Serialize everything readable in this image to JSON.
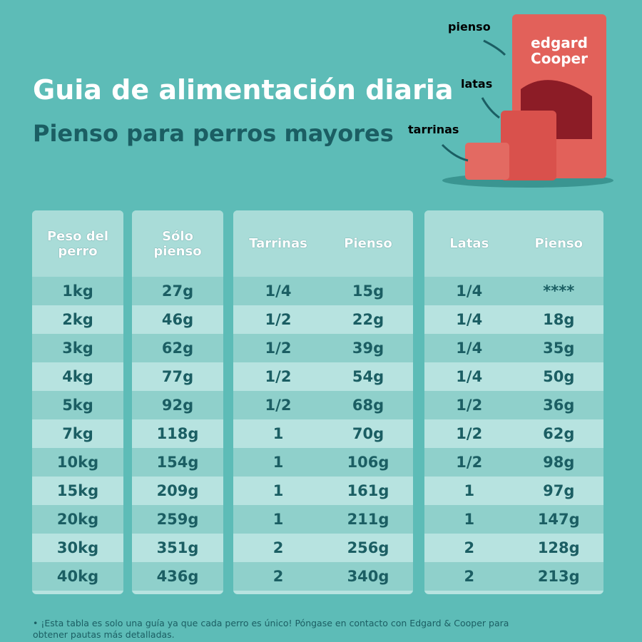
{
  "header": {
    "title": "Guia de alimentación diaria",
    "subtitle": "Pienso para perros mayores"
  },
  "products": {
    "labels": [
      "pienso",
      "latas",
      "tarrinas"
    ],
    "brand": [
      "edgard",
      "Cooper"
    ]
  },
  "table": {
    "panels": [
      {
        "headers": [
          "Peso del perro"
        ],
        "rows": [
          [
            "1kg"
          ],
          [
            "2kg"
          ],
          [
            "3kg"
          ],
          [
            "4kg"
          ],
          [
            "5kg"
          ],
          [
            "7kg"
          ],
          [
            "10kg"
          ],
          [
            "15kg"
          ],
          [
            "20kg"
          ],
          [
            "30kg"
          ],
          [
            "40kg"
          ]
        ]
      },
      {
        "headers": [
          "Sólo pienso"
        ],
        "rows": [
          [
            "27g"
          ],
          [
            "46g"
          ],
          [
            "62g"
          ],
          [
            "77g"
          ],
          [
            "92g"
          ],
          [
            "118g"
          ],
          [
            "154g"
          ],
          [
            "209g"
          ],
          [
            "259g"
          ],
          [
            "351g"
          ],
          [
            "436g"
          ]
        ]
      },
      {
        "headers": [
          "Tarrinas",
          "Pienso"
        ],
        "rows": [
          [
            "1/4",
            "15g"
          ],
          [
            "1/2",
            "22g"
          ],
          [
            "1/2",
            "39g"
          ],
          [
            "1/2",
            "54g"
          ],
          [
            "1/2",
            "68g"
          ],
          [
            "1",
            "70g"
          ],
          [
            "1",
            "106g"
          ],
          [
            "1",
            "161g"
          ],
          [
            "1",
            "211g"
          ],
          [
            "2",
            "256g"
          ],
          [
            "2",
            "340g"
          ]
        ]
      },
      {
        "headers": [
          "Latas",
          "Pienso"
        ],
        "rows": [
          [
            "1/4",
            "****"
          ],
          [
            "1/4",
            "18g"
          ],
          [
            "1/4",
            "35g"
          ],
          [
            "1/4",
            "50g"
          ],
          [
            "1/2",
            "36g"
          ],
          [
            "1/2",
            "62g"
          ],
          [
            "1/2",
            "98g"
          ],
          [
            "1",
            "97g"
          ],
          [
            "1",
            "147g"
          ],
          [
            "2",
            "128g"
          ],
          [
            "2",
            "213g"
          ]
        ]
      }
    ]
  },
  "footnote": "• ¡Esta tabla es solo una guía ya que cada perro es único! Póngase en contacto con Edgard & Cooper para obtener pautas más detalladas."
}
